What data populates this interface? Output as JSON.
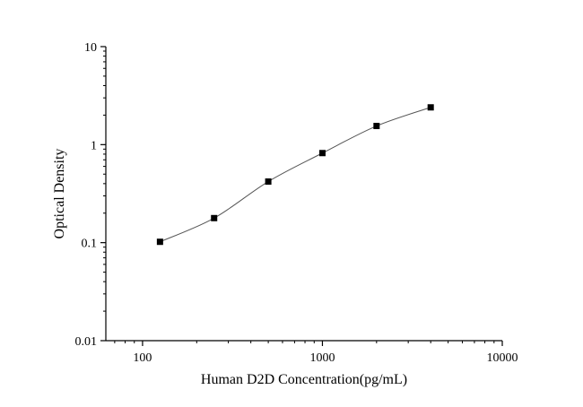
{
  "chart_data": {
    "type": "scatter",
    "title": "",
    "xlabel": "Human D2D Concentration(pg/mL)",
    "ylabel": "Optical Density",
    "xscale": "log",
    "yscale": "log",
    "xlim": [
      62.5,
      10000
    ],
    "ylim": [
      0.01,
      10
    ],
    "x_ticks": [
      100,
      1000,
      10000
    ],
    "x_tick_labels": [
      "100",
      "1000",
      "10000"
    ],
    "y_ticks": [
      0.01,
      0.1,
      1,
      10
    ],
    "y_tick_labels": [
      "0.01",
      "0.1",
      "1",
      "10"
    ],
    "grid": false,
    "legend": "none",
    "series": [
      {
        "x": [
          125,
          250,
          500,
          1000,
          2000,
          4000
        ],
        "y": [
          0.102,
          0.178,
          0.42,
          0.82,
          1.55,
          2.4
        ],
        "marker": "square",
        "fit_line": true
      }
    ],
    "colors": {
      "marker": "#000000",
      "line": "#555555",
      "axis": "#000000"
    }
  }
}
